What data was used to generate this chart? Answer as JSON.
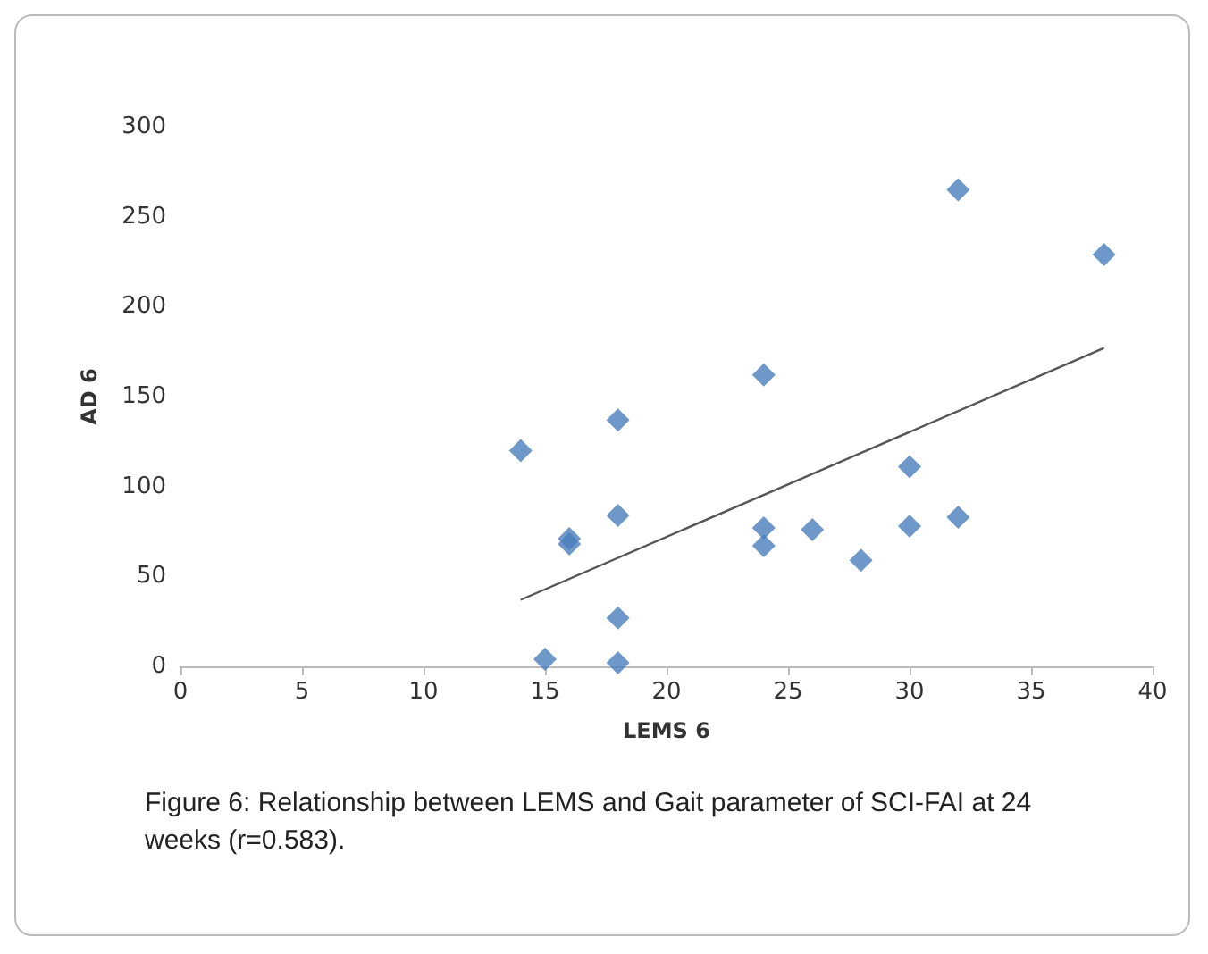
{
  "chart_data": {
    "type": "scatter",
    "xlabel": "LEMS 6",
    "ylabel": "AD 6",
    "series": [
      {
        "type": "scatter",
        "color": "#4a7ebb",
        "x": [
          14,
          15,
          16,
          16,
          18,
          18,
          18,
          18,
          24,
          24,
          24,
          26,
          28,
          30,
          30,
          32,
          32,
          38
        ],
        "values": [
          120,
          4,
          71,
          68,
          137,
          84,
          27,
          2,
          162,
          77,
          67,
          76,
          59,
          111,
          78,
          83,
          265,
          229
        ]
      },
      {
        "type": "line",
        "color": "#555555",
        "marker": "none",
        "x": [
          14,
          38
        ],
        "values": [
          37,
          177
        ]
      }
    ],
    "marker": "diamond",
    "xlim": [
      0,
      40
    ],
    "xticks": [
      0,
      5,
      10,
      15,
      20,
      25,
      30,
      35,
      40
    ],
    "ylim": [
      0,
      300
    ],
    "yticks": [
      0,
      50,
      100,
      150,
      200,
      250,
      300
    ],
    "grid": false,
    "annotations": [
      "Figure 6: Relationship between LEMS and Gait parameter of SCI-FAI at 24 weeks (r=0.583)."
    ]
  }
}
